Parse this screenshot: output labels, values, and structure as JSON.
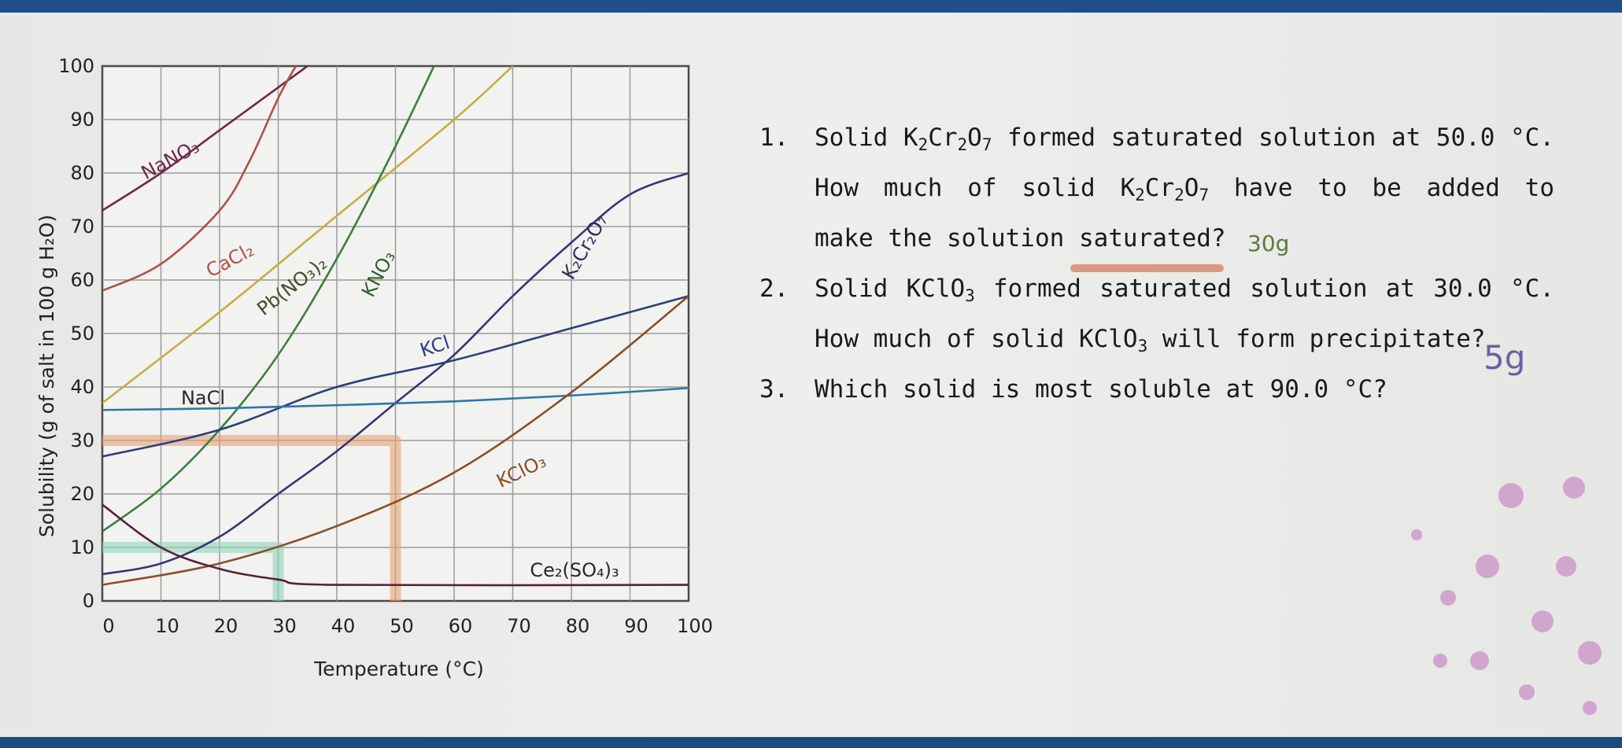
{
  "chart_data": {
    "type": "line",
    "xlabel": "Temperature (°C)",
    "ylabel": "Solubility (g of salt in 100 g H₂O)",
    "xlim": [
      0,
      100
    ],
    "ylim": [
      0,
      100
    ],
    "x_ticks": [
      "0",
      "10",
      "20",
      "30",
      "40",
      "50",
      "60",
      "70",
      "80",
      "90",
      "100"
    ],
    "y_ticks": [
      "0",
      "10",
      "20",
      "30",
      "40",
      "50",
      "60",
      "70",
      "80",
      "90",
      "100"
    ],
    "grid": true,
    "series": [
      {
        "name": "NaNO₃",
        "color": "#6b2a4a",
        "points": [
          [
            0,
            73
          ],
          [
            10,
            80
          ],
          [
            20,
            88
          ],
          [
            30,
            96
          ],
          [
            35,
            100
          ]
        ]
      },
      {
        "name": "CaCl₂",
        "color": "#b0504a",
        "points": [
          [
            0,
            58
          ],
          [
            10,
            63
          ],
          [
            20,
            73
          ],
          [
            25,
            82
          ],
          [
            30,
            94
          ],
          [
            33,
            100
          ]
        ]
      },
      {
        "name": "Pb(NO₃)₂",
        "color": "#c4ae44",
        "points": [
          [
            0,
            37
          ],
          [
            20,
            54
          ],
          [
            40,
            72
          ],
          [
            60,
            90
          ],
          [
            70,
            100
          ]
        ]
      },
      {
        "name": "KNO₃",
        "color": "#3f7d3d",
        "points": [
          [
            0,
            13
          ],
          [
            10,
            21
          ],
          [
            20,
            32
          ],
          [
            30,
            46
          ],
          [
            40,
            64
          ],
          [
            50,
            85
          ],
          [
            60,
            108
          ]
        ]
      },
      {
        "name": "K₂Cr₂O₇",
        "color": "#3b3472",
        "points": [
          [
            0,
            5
          ],
          [
            10,
            7
          ],
          [
            20,
            12
          ],
          [
            30,
            20
          ],
          [
            40,
            28
          ],
          [
            50,
            37
          ],
          [
            60,
            46
          ],
          [
            70,
            57
          ],
          [
            80,
            67
          ],
          [
            90,
            76
          ],
          [
            100,
            80
          ]
        ]
      },
      {
        "name": "KCl",
        "color": "#2c3f7d",
        "points": [
          [
            0,
            27
          ],
          [
            20,
            32
          ],
          [
            40,
            40
          ],
          [
            60,
            45
          ],
          [
            80,
            51
          ],
          [
            100,
            57
          ]
        ]
      },
      {
        "name": "NaCl",
        "color": "#2a78a6",
        "points": [
          [
            0,
            35.7
          ],
          [
            20,
            36
          ],
          [
            40,
            36.6
          ],
          [
            60,
            37.3
          ],
          [
            80,
            38.4
          ],
          [
            100,
            39.8
          ]
        ]
      },
      {
        "name": "KClO₃",
        "color": "#8a4e2a",
        "points": [
          [
            0,
            3
          ],
          [
            20,
            7
          ],
          [
            40,
            14
          ],
          [
            60,
            24
          ],
          [
            80,
            39
          ],
          [
            100,
            57
          ]
        ]
      },
      {
        "name": "Ce₂(SO₄)₃",
        "color": "#5a1f3a",
        "points": [
          [
            0,
            18
          ],
          [
            10,
            10
          ],
          [
            20,
            6
          ],
          [
            30,
            4
          ],
          [
            40,
            3
          ],
          [
            100,
            3
          ]
        ]
      }
    ],
    "annotations": [
      {
        "type": "highlight",
        "color": "#e8a173",
        "points": [
          [
            0,
            30
          ],
          [
            50,
            30
          ],
          [
            50,
            0
          ]
        ]
      },
      {
        "type": "highlight",
        "color": "#8fd6b8",
        "points": [
          [
            0,
            10
          ],
          [
            30,
            10
          ],
          [
            30,
            0
          ]
        ]
      }
    ]
  },
  "questions": [
    {
      "number": "1."
    },
    {
      "number": "2."
    },
    {
      "number": "3."
    }
  ],
  "handwritten": {
    "answer1": "30g",
    "answer2": "5g"
  }
}
